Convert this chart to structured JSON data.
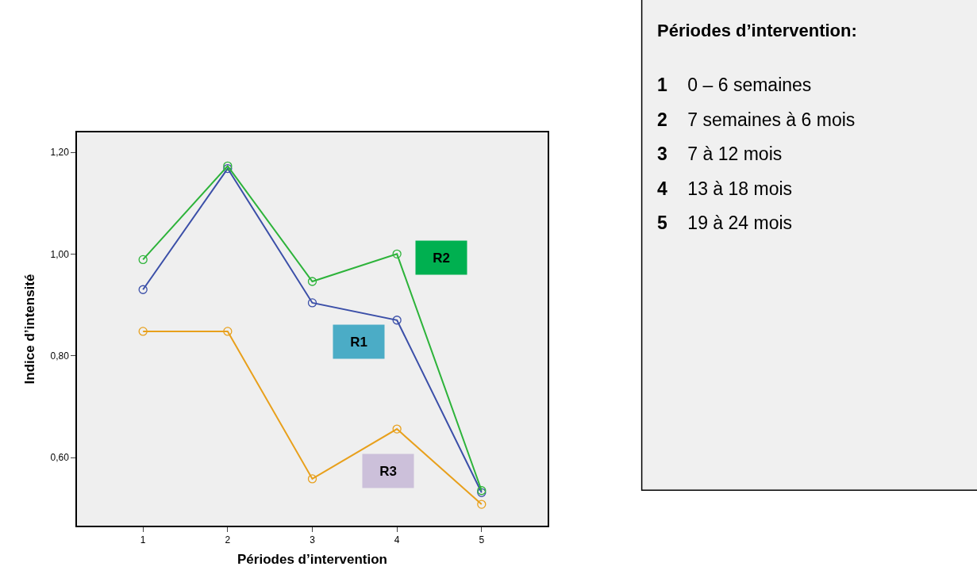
{
  "chart_data": {
    "type": "line",
    "xlabel": "Périodes d’intervention",
    "ylabel": "Indice d’intensité",
    "categories": [
      "1",
      "2",
      "3",
      "4",
      "5"
    ],
    "series": [
      {
        "name": "R1",
        "color": "#3b4fa8",
        "values": [
          0.93,
          1.168,
          0.904,
          0.87,
          0.531
        ]
      },
      {
        "name": "R2",
        "color": "#2db33a",
        "values": [
          0.989,
          1.173,
          0.946,
          1.0,
          0.535
        ]
      },
      {
        "name": "R3",
        "color": "#e8a01c",
        "values": [
          0.848,
          0.848,
          0.558,
          0.656,
          0.508
        ]
      }
    ],
    "ylim": [
      0.466,
      1.239
    ],
    "yticks": [
      {
        "value": 0.6,
        "label": "0,60"
      },
      {
        "value": 0.8,
        "label": "0,80"
      },
      {
        "value": 1.0,
        "label": "1,00"
      },
      {
        "value": 1.2,
        "label": "1,20"
      }
    ],
    "marker": "circle",
    "line_style": "solid",
    "grid": false,
    "legend": false,
    "annotations": [
      "Périodes d’intervention:",
      "1 0 – 6 semaines",
      "2 7 semaines à 6 mois",
      "3 7 à 12 mois",
      "4 13 à 18 mois",
      "5 19 à 24 mois"
    ]
  }
}
